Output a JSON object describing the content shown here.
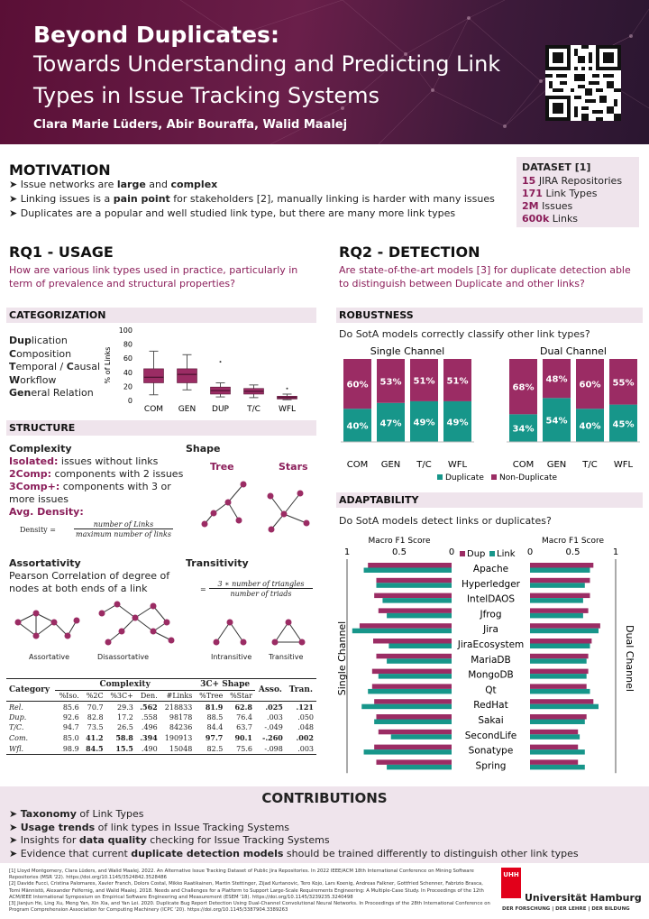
{
  "header": {
    "title_line1": "Beyond Duplicates:",
    "title_line2": "Towards Understanding and Predicting Link",
    "title_line3": "Types in Issue Tracking Systems",
    "authors": "Clara Marie Lüders, Abir Bouraffa, Walid Maalej"
  },
  "motivation": {
    "title": "MOTIVATION",
    "b1_pre": "Issue networks are ",
    "b1_bold1": "large",
    "b1_mid": " and ",
    "b1_bold2": "complex",
    "b2_pre": "Linking issues is a ",
    "b2_bold": "pain point",
    "b2_post": " for stakeholders [2], manually linking is harder with many issues",
    "b3": "Duplicates are a popular and well studied link type, but there are many more link types"
  },
  "dataset": {
    "title": "DATASET [1]",
    "items": [
      {
        "num": "15",
        "text": "JIRA Repositories"
      },
      {
        "num": "171",
        "text": "Link Types"
      },
      {
        "num": "2M",
        "text": "Issues"
      },
      {
        "num": "600k",
        "text": "Links"
      }
    ]
  },
  "rq1": {
    "title": "RQ1 - USAGE",
    "question": "How are various link types used in practice, particularly in term of prevalence and structural properties?",
    "categorization_title": "CATEGORIZATION",
    "categories": [
      {
        "bold": "Dup",
        "rest": "lication"
      },
      {
        "bold": "C",
        "rest": "omposition"
      },
      {
        "bold": "T",
        "rest": "emporal / ",
        "bold2": "C",
        "rest2": "ausal"
      },
      {
        "bold": "W",
        "rest": "orkflow"
      },
      {
        "bold": "Gen",
        "rest": "eral Relation"
      }
    ],
    "structure_title": "STRUCTURE",
    "complexity_title": "Complexity",
    "isolated_bold": "Isolated:",
    "isolated_text": " issues without links",
    "comp2_bold": "2Comp:",
    "comp2_text": " components with 2 issues",
    "comp3_bold": "3Comp+:",
    "comp3_text": " components with 3 or more issues",
    "avg_density": "Avg. Density:",
    "density_label": "Density =",
    "density_num": "number of Links",
    "density_den": "maximum number of links",
    "shape_title": "Shape",
    "shape_tree": "Tree",
    "shape_stars": "Stars",
    "assort_title": "Assortativity",
    "assort_text": "Pearson Correlation of degree of nodes at both ends of a link",
    "assort_label": "Assortative",
    "disassort_label": "Disassortative",
    "trans_title": "Transitivity",
    "trans_num": "3 ∗ number of triangles",
    "trans_den": "number of triads",
    "intrans_label": "Intransitive",
    "transitive_label": "Transitive"
  },
  "table": {
    "group_complexity": "Complexity",
    "group_shape": "3C+ Shape",
    "headers": [
      "Category",
      "%Iso.",
      "%2C",
      "%3C+",
      "Den.",
      "#Links",
      "%Tree",
      "%Star",
      "Asso.",
      "Tran."
    ],
    "rows": [
      [
        "Rel.",
        "85.6",
        "70.7",
        "29.3",
        ".562",
        "218833",
        "81.9",
        "62.8",
        ".025",
        ".121"
      ],
      [
        "Dup.",
        "92.6",
        "82.8",
        "17.2",
        ".558",
        "98178",
        "88.5",
        "76.4",
        ".003",
        ".050"
      ],
      [
        "T/C.",
        "94.7",
        "73.5",
        "26.5",
        ".496",
        "84236",
        "84.4",
        "63.7",
        "-.049",
        ".048"
      ],
      [
        "Com.",
        "85.0",
        "41.2",
        "58.8",
        ".394",
        "190913",
        "97.7",
        "90.1",
        "-.260",
        ".002"
      ],
      [
        "Wfl.",
        "98.9",
        "84.5",
        "15.5",
        ".490",
        "15048",
        "82.5",
        "75.6",
        "-.098",
        ".003"
      ]
    ]
  },
  "rq2": {
    "title": "RQ2 - DETECTION",
    "question": "Are state-of-the-art models [3] for duplicate detection able to distinguish between Duplicate and other links?",
    "robustness_title": "ROBUSTNESS",
    "robustness_q": "Do SotA models correctly classify other link types?",
    "single_channel": "Single Channel",
    "dual_channel": "Dual Channel",
    "adaptability_title": "ADAPTABILITY",
    "adaptability_q": "Do SotA models detect links or duplicates?",
    "macro_f1": "Macro F1 Score",
    "single_channel_vertical": "Single Channel",
    "dual_channel_vertical": "Dual Channel"
  },
  "contributions": {
    "title": "CONTRIBUTIONS",
    "c1_bold": "Taxonomy",
    "c1_rest": " of Link Types",
    "c2_bold": "Usage trends",
    "c2_rest": " of link types in Issue Tracking Systems",
    "c3_pre": "Insights for ",
    "c3_bold": "data quality",
    "c3_rest": " checking for Issue Tracking Systems",
    "c4_pre": "Evidence that current ",
    "c4_bold": "duplicate detection models",
    "c4_rest": " should be trained differently to distinguish other link types"
  },
  "references": {
    "r1": "[1] Lloyd Montgomery, Clara Lüders, and Walid Maalej. 2022. An Alternative Issue Tracking Dataset of Public Jira Repositories. In 2022 IEEE/ACM 18th International Conference on Mining Software Repositories (MSR '22). https://doi.org/10.1145/3524842.3528486",
    "r2": "[2] Davide Fucci, Cristina Palomares, Xavier Franch, Dolors Costal, Mikko Raatikainen, Martin Stettinger, Zijad Kurtanovic, Tero Kojo, Lars Koenig, Andreas Falkner, Gottfried Schenner, Fabrizio Brasca, Tomi Männistö, Alexander Felfernig, and Walid Maalej. 2018. Needs and Challenges for a Platform to Support Large-Scale Requirements Engineering: A Multiple-Case Study. In Proceedings of the 12th ACM/IEEE International Symposium on Empirical Software Engineering and Measurement (ESEM '18). https://doi.org/10.1145/3239235.3240498",
    "r3": "[3] Jianjun He, Ling Xu, Meng Yan, Xin Xia, and Yan Lei. 2020. Duplicate Bug Report Detection Using Dual-Channel Convolutional Neural Networks. In Proceedings of the 28th International Conference on Program Comprehension Association for Computing Machinery (ICPC '20). https://doi.org/10.1145/3387904.3389263"
  },
  "logo": {
    "uhh": "UHH",
    "name": "Universität Hamburg",
    "tagline": "DER FORSCHUNG | DER LEHRE | DER BILDUNG"
  },
  "colors": {
    "maroon": "#9b2c64",
    "teal": "#17968a",
    "header": "#5a0f36"
  },
  "chart_data": [
    {
      "type": "box",
      "ylabel": "% of Links",
      "ylim": [
        0,
        100
      ],
      "yticks": [
        "0",
        "20",
        "40",
        "60",
        "80",
        "100"
      ],
      "categories": [
        "COM",
        "GEN",
        "DUP",
        "T/C",
        "WFL"
      ],
      "boxes": [
        {
          "min": 8,
          "q1": 25,
          "median": 33,
          "q3": 45,
          "max": 70
        },
        {
          "min": 15,
          "q1": 25,
          "median": 37,
          "q3": 45,
          "max": 65
        },
        {
          "min": 5,
          "q1": 9,
          "median": 14,
          "q3": 19,
          "max": 25,
          "outliers": [
            55
          ]
        },
        {
          "min": 4,
          "q1": 9,
          "median": 13,
          "q3": 17,
          "max": 22
        },
        {
          "min": 1,
          "q1": 2,
          "median": 4,
          "q3": 6,
          "max": 9,
          "outliers": [
            17
          ]
        }
      ]
    },
    {
      "type": "bar",
      "title": "Single Channel",
      "stacked": true,
      "categories": [
        "COM",
        "GEN",
        "T/C",
        "WFL"
      ],
      "series": [
        {
          "name": "Duplicate",
          "values": [
            40,
            47,
            49,
            49
          ],
          "labels": [
            "40%",
            "47%",
            "49%",
            "49%"
          ]
        },
        {
          "name": "Non-Duplicate",
          "values": [
            60,
            53,
            51,
            51
          ],
          "labels": [
            "60%",
            "53%",
            "51%",
            "51%"
          ]
        }
      ]
    },
    {
      "type": "bar",
      "title": "Dual Channel",
      "stacked": true,
      "categories": [
        "COM",
        "GEN",
        "T/C",
        "WFL"
      ],
      "series": [
        {
          "name": "Duplicate",
          "values": [
            34,
            54,
            40,
            45
          ],
          "labels": [
            "34%",
            "54%",
            "40%",
            "45%"
          ]
        },
        {
          "name": "Non-Duplicate",
          "values": [
            68,
            48,
            60,
            55
          ],
          "labels": [
            "68%",
            "48%",
            "60%",
            "55%"
          ]
        }
      ]
    },
    {
      "type": "bar",
      "orientation": "horizontal",
      "xlabel": "Macro F1 Score",
      "categories": [
        "Apache",
        "Hyperledger",
        "IntelDAOS",
        "Jfrog",
        "Jira",
        "JiraEcosystem",
        "MariaDB",
        "MongoDB",
        "Qt",
        "RedHat",
        "Sakai",
        "SecondLife",
        "Sonatype",
        "Spring"
      ],
      "single_channel": {
        "axis_ticks": [
          "1",
          "0.5",
          "0"
        ],
        "series": [
          {
            "name": "Dup",
            "values": [
              0.8,
              0.72,
              0.74,
              0.7,
              0.88,
              0.75,
              0.72,
              0.76,
              0.76,
              0.74,
              0.72,
              0.7,
              0.74,
              0.72
            ]
          },
          {
            "name": "Link",
            "values": [
              0.84,
              0.72,
              0.66,
              0.62,
              0.95,
              0.6,
              0.62,
              0.7,
              0.8,
              0.86,
              0.74,
              0.58,
              0.84,
              0.62
            ]
          }
        ]
      },
      "dual_channel": {
        "axis_ticks": [
          "0",
          "0.5",
          "1"
        ],
        "series": [
          {
            "name": "Dup",
            "values": [
              0.74,
              0.7,
              0.7,
              0.68,
              0.82,
              0.72,
              0.68,
              0.68,
              0.66,
              0.74,
              0.66,
              0.56,
              0.56,
              0.56
            ]
          },
          {
            "name": "Link",
            "values": [
              0.7,
              0.64,
              0.62,
              0.62,
              0.8,
              0.7,
              0.66,
              0.66,
              0.7,
              0.8,
              0.64,
              0.58,
              0.64,
              0.64
            ]
          }
        ]
      },
      "legend": [
        "Dup",
        "Link"
      ]
    }
  ]
}
